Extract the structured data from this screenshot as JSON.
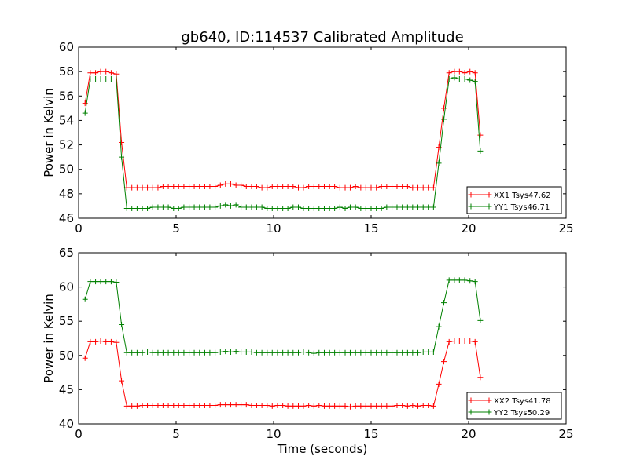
{
  "title": "gb640, ID:114537 Calibrated Amplitude",
  "colors": {
    "red": "#ff0000",
    "green": "#008000"
  },
  "chart_data": [
    {
      "type": "line",
      "title": "gb640, ID:114537 Calibrated Amplitude",
      "xlabel": "",
      "ylabel": "Power in Kelvin",
      "xlim": [
        0,
        25
      ],
      "ylim": [
        46,
        60
      ],
      "xticks": [
        0,
        5,
        10,
        15,
        20,
        25
      ],
      "yticks": [
        46,
        48,
        50,
        52,
        54,
        56,
        58,
        60
      ],
      "legend": "lower-right",
      "grid": false,
      "x": [
        0.33,
        0.6,
        0.87,
        1.13,
        1.4,
        1.67,
        1.93,
        2.2,
        2.47,
        2.73,
        3.0,
        3.27,
        3.53,
        3.8,
        4.07,
        4.33,
        4.6,
        4.87,
        5.13,
        5.4,
        5.67,
        5.93,
        6.2,
        6.47,
        6.73,
        7.0,
        7.27,
        7.53,
        7.8,
        8.07,
        8.33,
        8.6,
        8.87,
        9.13,
        9.4,
        9.67,
        9.93,
        10.2,
        10.47,
        10.73,
        11.0,
        11.27,
        11.53,
        11.8,
        12.07,
        12.33,
        12.6,
        12.87,
        13.13,
        13.4,
        13.67,
        13.93,
        14.2,
        14.47,
        14.73,
        15.0,
        15.27,
        15.53,
        15.8,
        16.07,
        16.33,
        16.6,
        16.87,
        17.13,
        17.4,
        17.67,
        17.93,
        18.2,
        18.47,
        18.73,
        19.0,
        19.27,
        19.53,
        19.8,
        20.07,
        20.33,
        20.6
      ],
      "series": [
        {
          "name": "XX1 Tsys47.62",
          "color": "#ff0000",
          "values": [
            55.4,
            57.9,
            57.9,
            58.0,
            58.0,
            57.9,
            57.8,
            52.2,
            48.5,
            48.5,
            48.5,
            48.5,
            48.5,
            48.5,
            48.5,
            48.6,
            48.6,
            48.6,
            48.6,
            48.6,
            48.6,
            48.6,
            48.6,
            48.6,
            48.6,
            48.6,
            48.7,
            48.8,
            48.8,
            48.7,
            48.7,
            48.6,
            48.6,
            48.6,
            48.5,
            48.5,
            48.6,
            48.6,
            48.6,
            48.6,
            48.6,
            48.5,
            48.5,
            48.6,
            48.6,
            48.6,
            48.6,
            48.6,
            48.6,
            48.5,
            48.5,
            48.5,
            48.6,
            48.5,
            48.5,
            48.5,
            48.5,
            48.6,
            48.6,
            48.6,
            48.6,
            48.6,
            48.6,
            48.5,
            48.5,
            48.5,
            48.5,
            48.5,
            51.8,
            55.0,
            57.9,
            58.0,
            58.0,
            57.9,
            58.0,
            57.9,
            52.8
          ]
        },
        {
          "name": "YY1 Tsys46.71",
          "color": "#008000",
          "values": [
            54.6,
            57.4,
            57.4,
            57.4,
            57.4,
            57.4,
            57.4,
            51.0,
            46.8,
            46.8,
            46.8,
            46.8,
            46.8,
            46.9,
            46.9,
            46.9,
            46.9,
            46.8,
            46.8,
            46.9,
            46.9,
            46.9,
            46.9,
            46.9,
            46.9,
            46.9,
            47.0,
            47.1,
            47.0,
            47.1,
            46.9,
            46.9,
            46.9,
            46.9,
            46.9,
            46.8,
            46.8,
            46.8,
            46.8,
            46.8,
            46.9,
            46.9,
            46.8,
            46.8,
            46.8,
            46.8,
            46.8,
            46.8,
            46.8,
            46.9,
            46.8,
            46.9,
            46.9,
            46.8,
            46.8,
            46.8,
            46.8,
            46.8,
            46.9,
            46.9,
            46.9,
            46.9,
            46.9,
            46.9,
            46.9,
            46.9,
            46.9,
            46.9,
            50.5,
            54.1,
            57.4,
            57.5,
            57.4,
            57.4,
            57.3,
            57.2,
            51.5
          ]
        }
      ]
    },
    {
      "type": "line",
      "title": "",
      "xlabel": "Time (seconds)",
      "ylabel": "Power in Kelvin",
      "xlim": [
        0,
        25
      ],
      "ylim": [
        40,
        65
      ],
      "xticks": [
        0,
        5,
        10,
        15,
        20,
        25
      ],
      "yticks": [
        40,
        45,
        50,
        55,
        60,
        65
      ],
      "legend": "lower-right",
      "grid": false,
      "x": [
        0.33,
        0.6,
        0.87,
        1.13,
        1.4,
        1.67,
        1.93,
        2.2,
        2.47,
        2.73,
        3.0,
        3.27,
        3.53,
        3.8,
        4.07,
        4.33,
        4.6,
        4.87,
        5.13,
        5.4,
        5.67,
        5.93,
        6.2,
        6.47,
        6.73,
        7.0,
        7.27,
        7.53,
        7.8,
        8.07,
        8.33,
        8.6,
        8.87,
        9.13,
        9.4,
        9.67,
        9.93,
        10.2,
        10.47,
        10.73,
        11.0,
        11.27,
        11.53,
        11.8,
        12.07,
        12.33,
        12.6,
        12.87,
        13.13,
        13.4,
        13.67,
        13.93,
        14.2,
        14.47,
        14.73,
        15.0,
        15.27,
        15.53,
        15.8,
        16.07,
        16.33,
        16.6,
        16.87,
        17.13,
        17.4,
        17.67,
        17.93,
        18.2,
        18.47,
        18.73,
        19.0,
        19.27,
        19.53,
        19.8,
        20.07,
        20.33,
        20.6
      ],
      "series": [
        {
          "name": "XX2 Tsys41.78",
          "color": "#ff0000",
          "values": [
            49.6,
            52.0,
            52.0,
            52.1,
            52.0,
            52.0,
            51.9,
            46.3,
            42.6,
            42.6,
            42.6,
            42.7,
            42.7,
            42.7,
            42.7,
            42.7,
            42.7,
            42.7,
            42.7,
            42.7,
            42.7,
            42.7,
            42.7,
            42.7,
            42.7,
            42.7,
            42.8,
            42.8,
            42.8,
            42.8,
            42.8,
            42.8,
            42.7,
            42.7,
            42.7,
            42.7,
            42.6,
            42.7,
            42.7,
            42.6,
            42.6,
            42.6,
            42.6,
            42.7,
            42.6,
            42.7,
            42.6,
            42.6,
            42.6,
            42.6,
            42.6,
            42.5,
            42.6,
            42.6,
            42.6,
            42.6,
            42.6,
            42.6,
            42.6,
            42.6,
            42.7,
            42.7,
            42.6,
            42.7,
            42.6,
            42.7,
            42.7,
            42.6,
            45.8,
            49.1,
            52.0,
            52.1,
            52.1,
            52.1,
            52.1,
            52.0,
            46.8
          ]
        },
        {
          "name": "YY2 Tsys50.29",
          "color": "#008000",
          "values": [
            58.2,
            60.8,
            60.8,
            60.8,
            60.8,
            60.8,
            60.7,
            54.5,
            50.4,
            50.4,
            50.4,
            50.4,
            50.5,
            50.4,
            50.4,
            50.4,
            50.4,
            50.4,
            50.4,
            50.4,
            50.4,
            50.4,
            50.4,
            50.4,
            50.4,
            50.4,
            50.5,
            50.6,
            50.5,
            50.6,
            50.5,
            50.5,
            50.5,
            50.4,
            50.4,
            50.4,
            50.4,
            50.4,
            50.4,
            50.4,
            50.4,
            50.4,
            50.5,
            50.4,
            50.3,
            50.4,
            50.4,
            50.4,
            50.4,
            50.4,
            50.4,
            50.4,
            50.4,
            50.4,
            50.4,
            50.4,
            50.4,
            50.4,
            50.4,
            50.4,
            50.4,
            50.4,
            50.4,
            50.4,
            50.4,
            50.5,
            50.5,
            50.5,
            54.2,
            57.7,
            61.0,
            61.0,
            61.0,
            61.0,
            60.9,
            60.8,
            55.1
          ]
        }
      ]
    }
  ]
}
